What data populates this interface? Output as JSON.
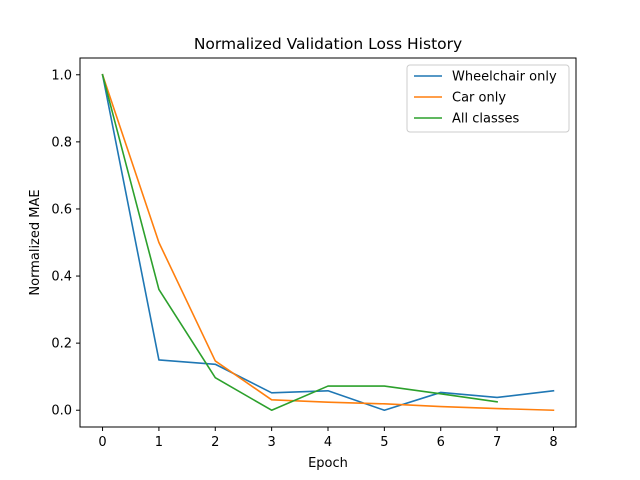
{
  "chart_data": {
    "type": "line",
    "title": "Normalized Validation Loss History",
    "xlabel": "Epoch",
    "ylabel": "Normalized MAE",
    "xlim": [
      -0.4,
      8.4
    ],
    "ylim": [
      -0.05,
      1.05
    ],
    "xticks": [
      0,
      1,
      2,
      3,
      4,
      5,
      6,
      7,
      8
    ],
    "xtick_labels": [
      "0",
      "1",
      "2",
      "3",
      "4",
      "5",
      "6",
      "7",
      "8"
    ],
    "yticks": [
      0.0,
      0.2,
      0.4,
      0.6,
      0.8,
      1.0
    ],
    "ytick_labels": [
      "0.0",
      "0.2",
      "0.4",
      "0.6",
      "0.8",
      "1.0"
    ],
    "grid": false,
    "legend_position": "top-right",
    "series": [
      {
        "name": "Wheelchair only",
        "color": "#1f77b4",
        "x": [
          0,
          1,
          2,
          3,
          4,
          5,
          6,
          7,
          8
        ],
        "values": [
          1.0,
          0.15,
          0.137,
          0.052,
          0.058,
          0.0,
          0.053,
          0.038,
          0.058
        ]
      },
      {
        "name": "Car only",
        "color": "#ff7f0e",
        "x": [
          0,
          1,
          2,
          3,
          4,
          5,
          6,
          7,
          8
        ],
        "values": [
          1.0,
          0.5,
          0.147,
          0.031,
          0.024,
          0.019,
          0.011,
          0.005,
          0.0
        ]
      },
      {
        "name": "All classes",
        "color": "#2ca02c",
        "x": [
          0,
          1,
          2,
          3,
          4,
          5,
          6,
          7
        ],
        "values": [
          1.0,
          0.36,
          0.097,
          0.0,
          0.072,
          0.072,
          0.049,
          0.025
        ]
      }
    ]
  }
}
